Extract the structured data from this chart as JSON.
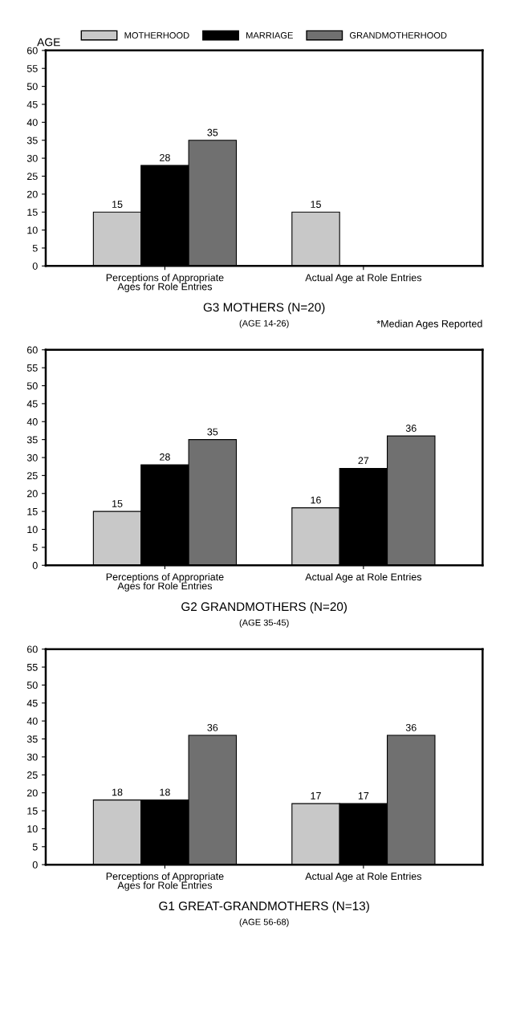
{
  "chart_data": [
    {
      "type": "bar",
      "title": "G3 MOTHERS (N=20)",
      "subtitle": "(AGE 14-26)",
      "ylabel": "AGE",
      "annotations": [
        "*Median Ages Reported"
      ],
      "categories": [
        "Perceptions of Appropriate\nAges for Role Entries",
        "Actual Age at Role Entries"
      ],
      "series": [
        {
          "name": "MOTHERHOOD",
          "color": "#c8c8c8",
          "values": [
            15,
            15
          ]
        },
        {
          "name": "MARRIAGE",
          "color": "#000000",
          "values": [
            28,
            null
          ]
        },
        {
          "name": "GRANDMOTHERHOOD",
          "color": "#707070",
          "values": [
            35,
            null
          ]
        }
      ],
      "ylim": [
        0,
        60
      ],
      "yticks": [
        0,
        5,
        10,
        15,
        20,
        25,
        30,
        35,
        40,
        45,
        50,
        55,
        60
      ],
      "data_labels": true,
      "legend": "top",
      "grid": false
    },
    {
      "type": "bar",
      "title": "G2 GRANDMOTHERS (N=20)",
      "subtitle": "(AGE 35-45)",
      "categories": [
        "Perceptions of Appropriate\nAges for Role Entries",
        "Actual Age at Role Entries"
      ],
      "series": [
        {
          "color": "#c8c8c8",
          "values": [
            15,
            16
          ]
        },
        {
          "color": "#000000",
          "values": [
            28,
            27
          ]
        },
        {
          "color": "#707070",
          "values": [
            35,
            36
          ]
        }
      ],
      "ylim": [
        0,
        60
      ],
      "yticks": [
        0,
        5,
        10,
        15,
        20,
        25,
        30,
        35,
        40,
        45,
        50,
        55,
        60
      ],
      "data_labels": true,
      "grid": false
    },
    {
      "type": "bar",
      "title": "G1 GREAT-GRANDMOTHERS (N=13)",
      "subtitle": "(AGE 56-68)",
      "categories": [
        "Perceptions of Appropriate\nAges for Role Entries",
        "Actual Age at Role Entries"
      ],
      "series": [
        {
          "color": "#c8c8c8",
          "values": [
            18,
            17
          ]
        },
        {
          "color": "#000000",
          "values": [
            18,
            17
          ]
        },
        {
          "color": "#707070",
          "values": [
            36,
            36
          ]
        }
      ],
      "ylim": [
        0,
        60
      ],
      "yticks": [
        0,
        5,
        10,
        15,
        20,
        25,
        30,
        35,
        40,
        45,
        50,
        55,
        60
      ],
      "data_labels": true,
      "grid": false
    }
  ]
}
